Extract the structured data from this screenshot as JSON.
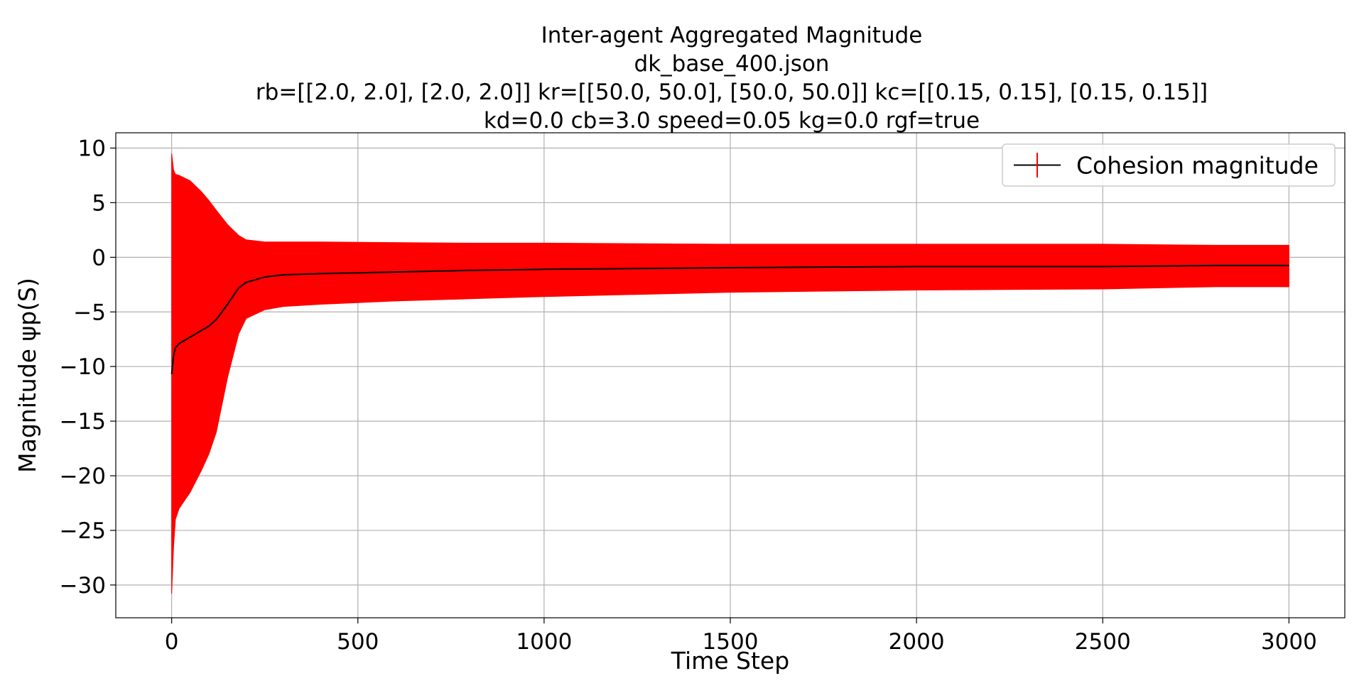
{
  "chart_data": {
    "type": "line",
    "title_lines": [
      "Inter-agent Aggregated Magnitude",
      "dk_base_400.json",
      "rb=[[2.0, 2.0], [2.0, 2.0]] kr=[[50.0, 50.0], [50.0, 50.0]] kc=[[0.15, 0.15], [0.15, 0.15]]",
      "kd=0.0 cb=3.0 speed=0.05 kg=0.0 rgf=true"
    ],
    "xlabel": "Time Step",
    "ylabel": "Magnitude ψp(S)",
    "xlim": [
      -150,
      3150
    ],
    "ylim": [
      -33,
      11.4
    ],
    "x_ticks": [
      0,
      500,
      1000,
      1500,
      2000,
      2500,
      3000
    ],
    "x_tick_labels": [
      "0",
      "500",
      "1000",
      "1500",
      "2000",
      "2500",
      "3000"
    ],
    "y_ticks": [
      10,
      5,
      0,
      -5,
      -10,
      -15,
      -20,
      -25,
      -30
    ],
    "y_tick_labels": [
      "10",
      "5",
      "0",
      "−5",
      "−10",
      "−15",
      "−20",
      "−25",
      "−30"
    ],
    "grid": true,
    "legend_position": "top-right",
    "series": [
      {
        "name": "Cohesion magnitude",
        "line_color": "#000000",
        "error_color": "#ff0000",
        "x": [
          0,
          5,
          10,
          20,
          50,
          80,
          100,
          120,
          150,
          180,
          200,
          250,
          300,
          400,
          600,
          800,
          1000,
          1500,
          2000,
          2500,
          2800,
          3000
        ],
        "y": [
          -10.7,
          -9.0,
          -8.3,
          -7.9,
          -7.3,
          -6.7,
          -6.3,
          -5.7,
          -4.3,
          -2.8,
          -2.3,
          -1.8,
          -1.6,
          -1.5,
          -1.35,
          -1.2,
          -1.1,
          -0.95,
          -0.85,
          -0.85,
          -0.75,
          -0.75
        ],
        "upper": [
          9.5,
          8.0,
          7.6,
          7.5,
          7.0,
          6.0,
          5.2,
          4.3,
          3.0,
          2.0,
          1.6,
          1.4,
          1.4,
          1.4,
          1.35,
          1.3,
          1.3,
          1.2,
          1.2,
          1.2,
          1.1,
          1.1
        ],
        "lower": [
          -30.8,
          -26.5,
          -24.0,
          -23.0,
          -21.5,
          -19.5,
          -18.0,
          -16.0,
          -11.0,
          -7.0,
          -5.6,
          -4.8,
          -4.5,
          -4.3,
          -4.0,
          -3.8,
          -3.6,
          -3.2,
          -3.0,
          -2.9,
          -2.7,
          -2.7
        ]
      }
    ]
  }
}
